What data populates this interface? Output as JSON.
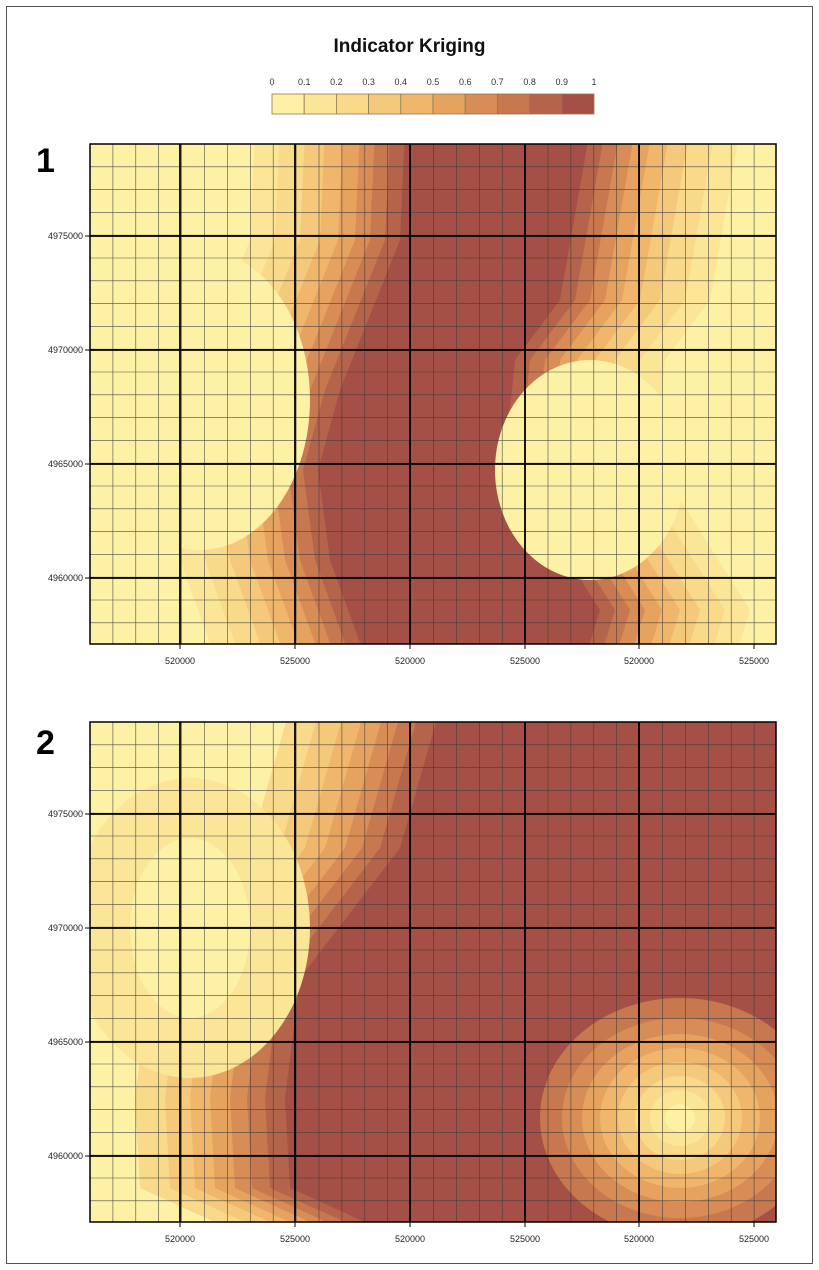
{
  "title": "Indicator Kriging",
  "legend": {
    "labels": [
      "0",
      "0.1",
      "0.2",
      "0.3",
      "0.4",
      "0.5",
      "0.6",
      "0.7",
      "0.8",
      "0.9",
      "1"
    ],
    "colors": [
      "#fdf1a6",
      "#fbe597",
      "#f9d98a",
      "#f5c97b",
      "#efb66c",
      "#e5a35f",
      "#d88c56",
      "#c8784f",
      "#b4644a",
      "#a55047"
    ]
  },
  "panels": [
    {
      "label": "1",
      "x_ticks": [
        "520000",
        "525000",
        "520000",
        "525000",
        "520000",
        "525000"
      ],
      "y_ticks": [
        "4975000",
        "4970000",
        "4965000",
        "4960000"
      ]
    },
    {
      "label": "2",
      "x_ticks": [
        "520000",
        "525000",
        "520000",
        "525000",
        "520000",
        "525000"
      ],
      "y_ticks": [
        "4975000",
        "4970000",
        "4965000",
        "4960000"
      ]
    }
  ]
}
